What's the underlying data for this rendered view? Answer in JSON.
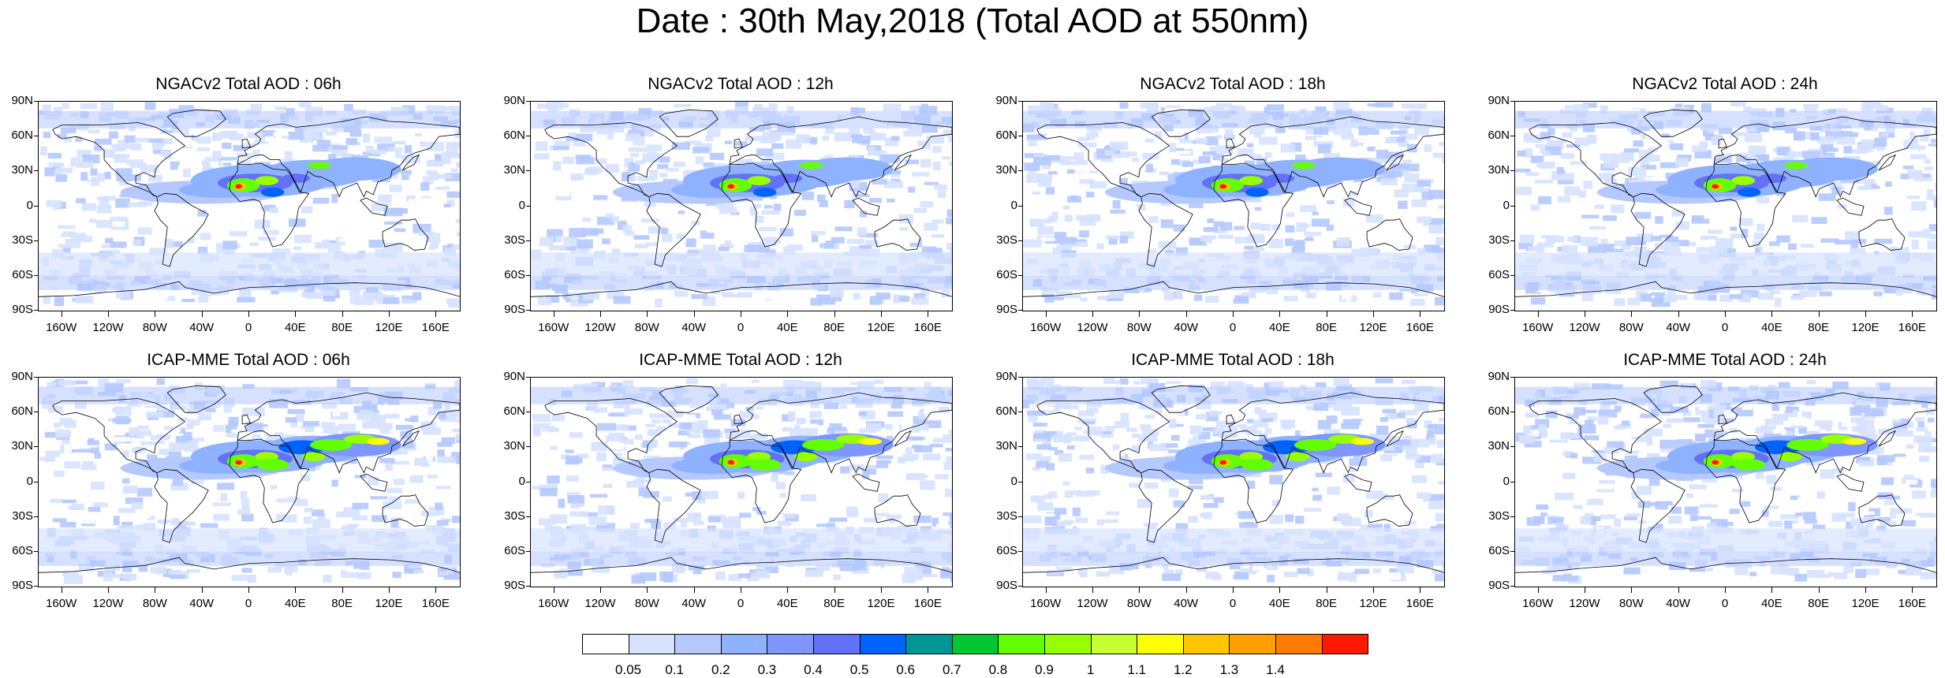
{
  "title": "Date : 30th May,2018 (Total AOD at 550nm)",
  "panels": [
    {
      "title": "NGACv2 Total AOD : 06h",
      "model": "NGACv2"
    },
    {
      "title": "NGACv2 Total AOD : 12h",
      "model": "NGACv2"
    },
    {
      "title": "NGACv2 Total AOD : 18h",
      "model": "NGACv2"
    },
    {
      "title": "NGACv2 Total AOD : 24h",
      "model": "NGACv2"
    },
    {
      "title": "ICAP-MME Total AOD : 06h",
      "model": "ICAP-MME"
    },
    {
      "title": "ICAP-MME Total AOD : 12h",
      "model": "ICAP-MME"
    },
    {
      "title": "ICAP-MME Total AOD : 18h",
      "model": "ICAP-MME"
    },
    {
      "title": "ICAP-MME Total AOD : 24h",
      "model": "ICAP-MME"
    }
  ],
  "lat_labels": [
    "90N",
    "60N",
    "30N",
    "0",
    "30S",
    "60S",
    "90S"
  ],
  "lon_labels": [
    "160W",
    "120W",
    "80W",
    "40W",
    "0",
    "40E",
    "80E",
    "120E",
    "160E"
  ],
  "colorbar": {
    "labels": [
      "0.05",
      "0.1",
      "0.2",
      "0.3",
      "0.4",
      "0.5",
      "0.6",
      "0.7",
      "0.8",
      "0.9",
      "1",
      "1.1",
      "1.2",
      "1.3",
      "1.4"
    ],
    "colors": [
      "#ffffff",
      "#d6e2ff",
      "#b5c9ff",
      "#8eb2ff",
      "#7f96ff",
      "#6370f8",
      "#0063ff",
      "#009696",
      "#00c633",
      "#63ff00",
      "#96ff00",
      "#c6ff33",
      "#ffff00",
      "#ffc600",
      "#ffa000",
      "#ff7c00",
      "#ff1900"
    ]
  }
}
